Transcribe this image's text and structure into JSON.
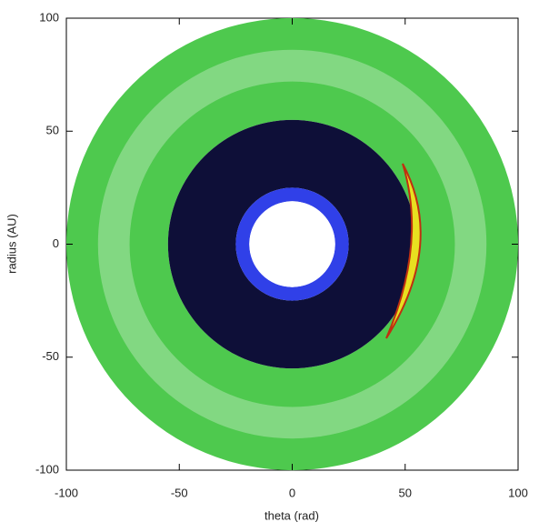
{
  "chart_data": {
    "type": "polar-image",
    "x_label": "theta (rad)",
    "y_label": "radius (AU)",
    "xlim": [
      -100,
      100
    ],
    "ylim": [
      -100,
      100
    ],
    "xticks": [
      -100,
      -50,
      0,
      50,
      100
    ],
    "yticks": [
      -100,
      -50,
      0,
      50,
      100
    ],
    "rings": [
      {
        "inner": 55,
        "outer": 100,
        "color": "#4ec94e"
      },
      {
        "inner": 72,
        "outer": 86,
        "color": "#82d882"
      },
      {
        "inner": 25,
        "outer": 55,
        "color": "#0e0f38"
      },
      {
        "inner": 19,
        "outer": 25,
        "color": "#3040e8"
      },
      {
        "inner": 0,
        "outer": 19,
        "color": "#ffffff"
      }
    ]
  }
}
